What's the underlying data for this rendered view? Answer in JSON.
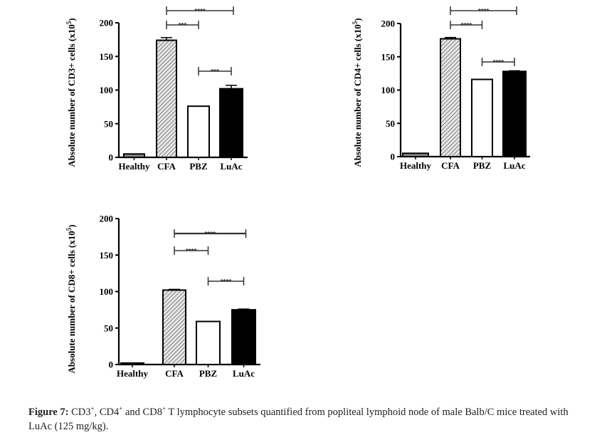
{
  "caption": {
    "label": "Figure 7:",
    "text_parts": [
      "CD3",
      "+",
      ", CD4",
      "+",
      " and CD8",
      "+",
      " T lymphocyte subsets quantified from popliteal lymphoid node of male Balb/C mice treated with LuAc (125 mg/kg)."
    ]
  },
  "colors": {
    "bar_outline": "#000000",
    "luac_fill": "#000000",
    "pbz_fill": "#ffffff",
    "cfa_fill": "hatched-gray",
    "healthy_fill": "#888888"
  },
  "chart_data": [
    {
      "type": "bar",
      "ylabel": "Absolute number of CD3+ cells (x10",
      "ylabel_sup": "5",
      "ylabel_close": ")",
      "categories": [
        "Healthy",
        "CFA",
        "PBZ",
        "LuAc"
      ],
      "values": [
        5,
        174,
        76,
        102
      ],
      "errors": [
        0,
        4,
        0,
        5
      ],
      "ylim": [
        0,
        200
      ],
      "yticks": [
        "0",
        "50",
        "100",
        "150",
        "200"
      ],
      "significance": [
        {
          "from": "CFA",
          "to": "LuAc",
          "label": "****"
        },
        {
          "from": "CFA",
          "to": "PBZ",
          "label": "***"
        },
        {
          "from": "PBZ",
          "to": "LuAc",
          "label": "***"
        }
      ],
      "grid": false
    },
    {
      "type": "bar",
      "ylabel": "Absolute number of CD4+ cells (x10",
      "ylabel_sup": "5",
      "ylabel_close": ")",
      "categories": [
        "Healthy",
        "CFA",
        "PBZ",
        "LuAc"
      ],
      "values": [
        5,
        177,
        116,
        128
      ],
      "errors": [
        0,
        2,
        0,
        1
      ],
      "ylim": [
        0,
        200
      ],
      "yticks": [
        "0",
        "50",
        "100",
        "150",
        "200"
      ],
      "significance": [
        {
          "from": "CFA",
          "to": "LuAc",
          "label": "****"
        },
        {
          "from": "CFA",
          "to": "PBZ",
          "label": "****"
        },
        {
          "from": "PBZ",
          "to": "LuAc",
          "label": "****"
        }
      ],
      "grid": false
    },
    {
      "type": "bar",
      "ylabel": "Absolute number of CD8+ cells (x10",
      "ylabel_sup": "5",
      "ylabel_close": ")",
      "categories": [
        "Healthy",
        "CFA",
        "PBZ",
        "LuAc"
      ],
      "values": [
        2,
        102,
        59,
        75
      ],
      "errors": [
        0,
        1,
        0,
        1
      ],
      "ylim": [
        0,
        200
      ],
      "yticks": [
        "0",
        "50",
        "100",
        "150",
        "200"
      ],
      "significance": [
        {
          "from": "CFA",
          "to": "LuAc",
          "label": "****"
        },
        {
          "from": "CFA",
          "to": "PBZ",
          "label": "****"
        },
        {
          "from": "PBZ",
          "to": "LuAc",
          "label": "****"
        }
      ],
      "grid": false
    }
  ]
}
